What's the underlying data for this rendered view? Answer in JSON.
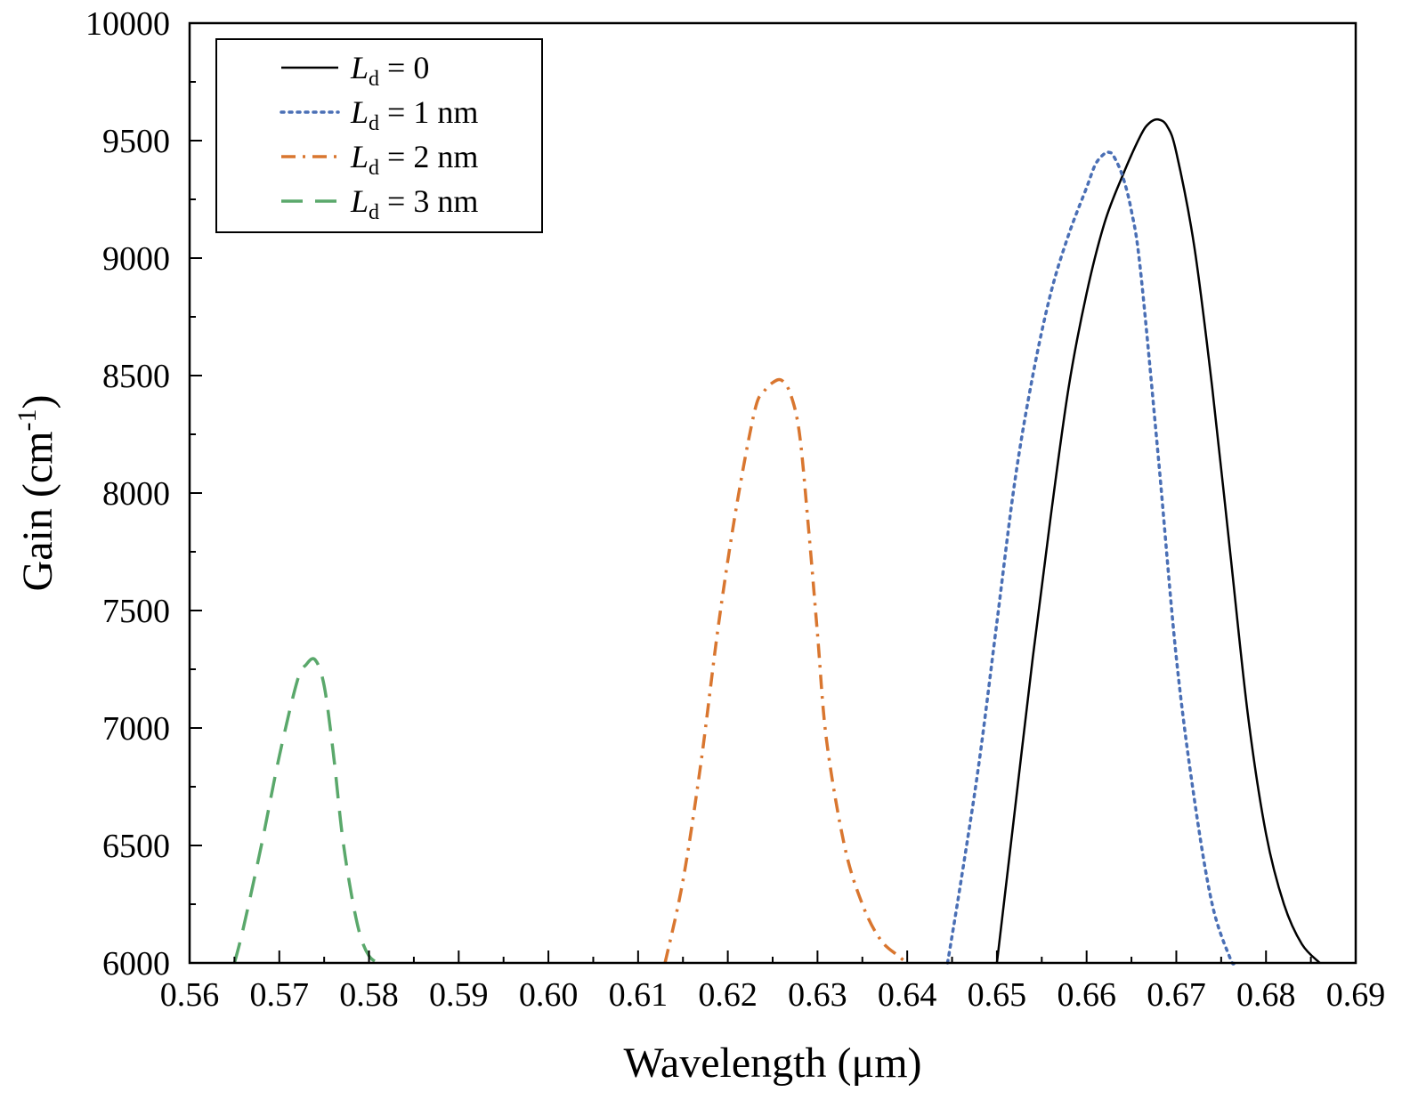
{
  "chart_data": {
    "type": "line",
    "title": "",
    "xlabel": "Wavelength (μm)",
    "ylabel_main": "Gain (cm",
    "ylabel_sup": "-1",
    "ylabel_close": ")",
    "xlim": [
      0.56,
      0.69
    ],
    "ylim": [
      6000,
      10000
    ],
    "x_ticks": [
      0.56,
      0.57,
      0.58,
      0.59,
      0.6,
      0.61,
      0.62,
      0.63,
      0.64,
      0.65,
      0.66,
      0.67,
      0.68,
      0.69
    ],
    "x_tick_labels": [
      "0.56",
      "0.57",
      "0.58",
      "0.59",
      "0.60",
      "0.61",
      "0.62",
      "0.63",
      "0.64",
      "0.65",
      "0.66",
      "0.67",
      "0.68",
      "0.69"
    ],
    "y_ticks": [
      6000,
      6500,
      7000,
      7500,
      8000,
      8500,
      9000,
      9500,
      10000
    ],
    "y_tick_labels": [
      "6000",
      "6500",
      "7000",
      "7500",
      "8000",
      "8500",
      "9000",
      "9500",
      "10000"
    ],
    "grid": false,
    "legend_position": "top-left",
    "series": [
      {
        "legend_symbol": "L",
        "legend_sub": "d",
        "legend_value": " = 0",
        "color": "#000000",
        "style": "solid",
        "x": [
          0.65,
          0.652,
          0.654,
          0.656,
          0.658,
          0.66,
          0.662,
          0.664,
          0.666,
          0.667,
          0.668,
          0.669,
          0.67,
          0.672,
          0.674,
          0.676,
          0.678,
          0.68,
          0.682,
          0.684,
          0.686
        ],
        "y": [
          6000,
          6650,
          7300,
          7900,
          8450,
          8850,
          9150,
          9350,
          9520,
          9575,
          9590,
          9560,
          9450,
          9050,
          8450,
          7750,
          7050,
          6550,
          6250,
          6080,
          6000
        ]
      },
      {
        "legend_symbol": "L",
        "legend_sub": "d",
        "legend_value": " = 1 nm",
        "color": "#4a6fb5",
        "style": "dotted",
        "x": [
          0.6445,
          0.646,
          0.648,
          0.65,
          0.652,
          0.654,
          0.656,
          0.658,
          0.66,
          0.661,
          0.662,
          0.6625,
          0.663,
          0.664,
          0.665,
          0.666,
          0.668,
          0.67,
          0.672,
          0.674,
          0.676,
          0.6765
        ],
        "y": [
          6000,
          6350,
          6850,
          7450,
          8050,
          8500,
          8850,
          9100,
          9300,
          9400,
          9445,
          9450,
          9435,
          9350,
          9200,
          8950,
          8150,
          7300,
          6700,
          6250,
          6020,
          6000
        ]
      },
      {
        "legend_symbol": "L",
        "legend_sub": "d",
        "legend_value": " = 2 nm",
        "color": "#d9762f",
        "style": "dashdot",
        "x": [
          0.613,
          0.615,
          0.617,
          0.619,
          0.621,
          0.623,
          0.624,
          0.625,
          0.626,
          0.627,
          0.628,
          0.629,
          0.63,
          0.631,
          0.633,
          0.635,
          0.637,
          0.639,
          0.64
        ],
        "y": [
          6000,
          6350,
          6850,
          7450,
          7950,
          8350,
          8430,
          8470,
          8480,
          8420,
          8250,
          7850,
          7400,
          6950,
          6500,
          6250,
          6100,
          6030,
          6000
        ]
      },
      {
        "legend_symbol": "L",
        "legend_sub": "d",
        "legend_value": " = 3 nm",
        "color": "#5aa86b",
        "style": "dashed",
        "x": [
          0.565,
          0.566,
          0.568,
          0.57,
          0.572,
          0.573,
          0.574,
          0.575,
          0.576,
          0.577,
          0.578,
          0.579,
          0.58,
          0.581
        ],
        "y": [
          6000,
          6150,
          6500,
          6880,
          7200,
          7270,
          7290,
          7180,
          6900,
          6550,
          6300,
          6120,
          6030,
          6000
        ]
      }
    ]
  }
}
